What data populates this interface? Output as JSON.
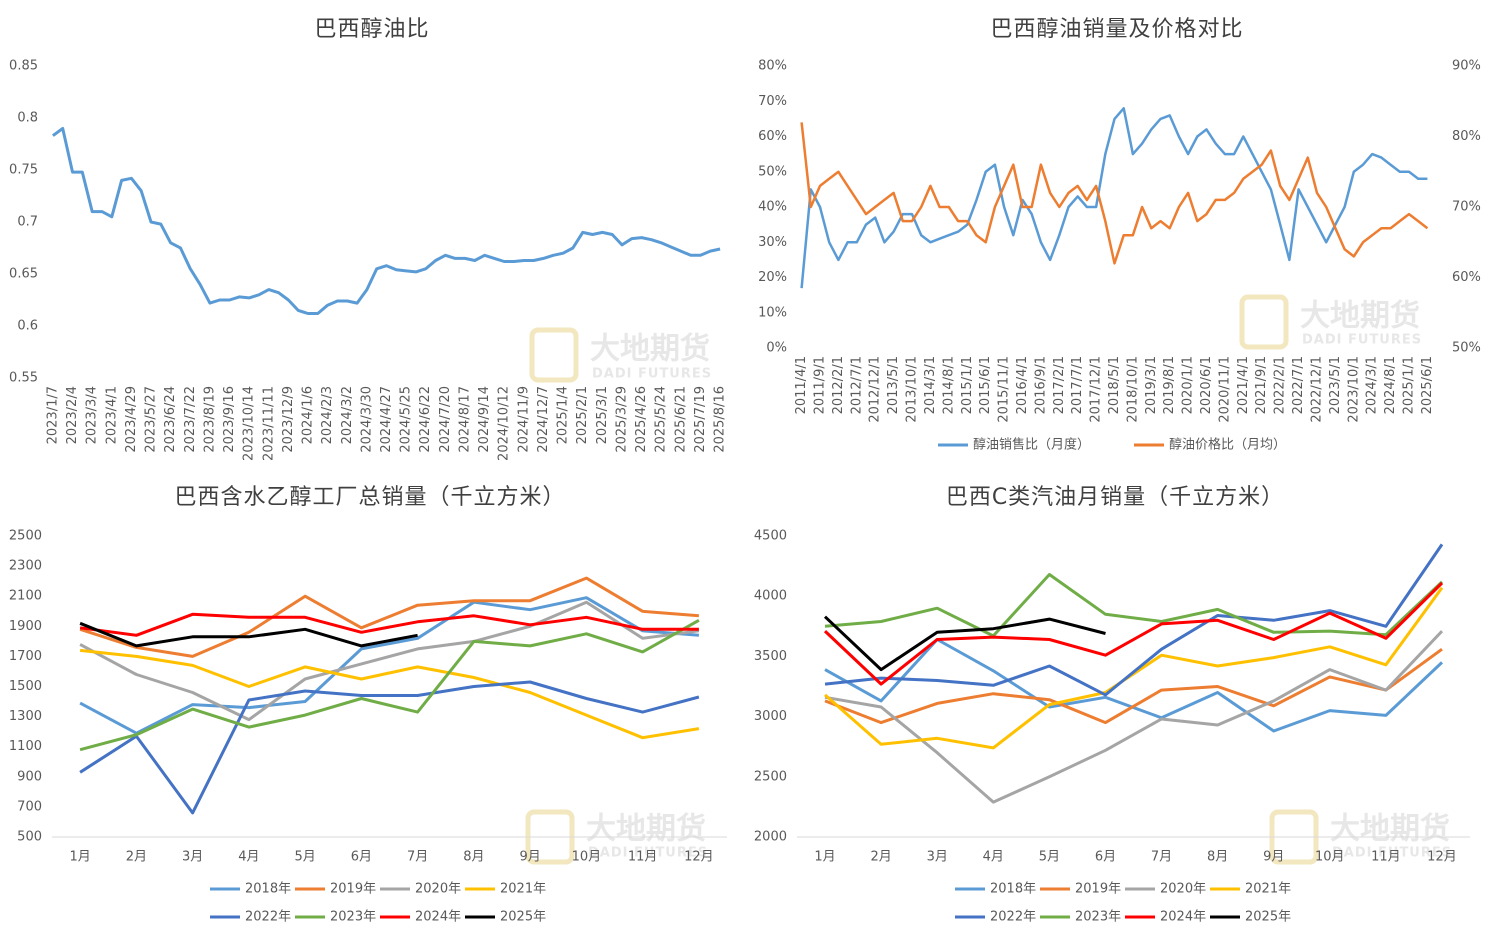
{
  "watermark": {
    "name": "大地期货",
    "sub": "DADI FUTURES"
  },
  "chart_data": [
    {
      "type": "line",
      "title": "巴西醇油比",
      "color": "#5b9bd5",
      "categories": [
        "2023/1/7",
        null,
        "2023/2/4",
        null,
        "2023/3/4",
        null,
        "2023/4/1",
        null,
        "2023/4/29",
        null,
        "2023/5/27",
        null,
        "2023/6/24",
        null,
        "2023/7/22",
        null,
        "2023/8/19",
        null,
        "2023/9/16",
        null,
        "2023/10/14",
        null,
        "2023/11/11",
        null,
        "2023/12/9",
        null,
        "2024/1/6",
        null,
        "2024/2/3",
        null,
        "2024/3/2",
        null,
        "2024/3/30",
        null,
        "2024/4/27",
        null,
        "2024/5/25",
        null,
        "2024/6/22",
        null,
        "2024/7/20",
        null,
        "2024/8/17",
        null,
        "2024/9/14",
        null,
        "2024/10/12",
        null,
        "2024/11/9",
        null,
        "2024/12/7",
        null,
        "2025/1/4",
        null,
        "2025/2/1",
        null,
        "2025/3/1",
        null,
        "2025/3/29",
        null,
        "2025/4/26",
        null,
        "2025/5/24",
        null,
        "2025/6/21",
        null,
        "2025/7/19",
        null,
        "2025/8/16"
      ],
      "values": [
        0.783,
        0.79,
        0.748,
        0.748,
        0.71,
        0.71,
        0.705,
        0.74,
        0.742,
        0.73,
        0.7,
        0.698,
        0.68,
        0.675,
        0.655,
        0.64,
        0.622,
        0.625,
        0.625,
        0.628,
        0.627,
        0.63,
        0.635,
        0.632,
        0.625,
        0.615,
        0.612,
        0.612,
        0.62,
        0.624,
        0.624,
        0.622,
        0.635,
        0.655,
        0.658,
        0.654,
        0.653,
        0.652,
        0.655,
        0.663,
        0.668,
        0.665,
        0.665,
        0.663,
        0.668,
        0.665,
        0.662,
        0.662,
        0.663,
        0.663,
        0.665,
        0.668,
        0.67,
        0.675,
        0.69,
        0.688,
        0.69,
        0.688,
        0.678,
        0.684,
        0.685,
        0.683,
        0.68,
        0.676,
        0.672,
        0.668,
        0.668,
        0.672,
        0.674
      ],
      "ylim": [
        0.55,
        0.85
      ],
      "yticks": [
        0.55,
        0.6,
        0.65,
        0.7,
        0.75,
        0.8,
        0.85
      ],
      "grid": false
    },
    {
      "type": "line",
      "title": "巴西醇油销量及价格对比",
      "categories": [
        "2011/4/1",
        null,
        "2011/9/1",
        null,
        "2012/2/1",
        null,
        "2012/7/1",
        null,
        "2012/12/1",
        null,
        "2013/5/1",
        null,
        "2013/10/1",
        null,
        "2014/3/1",
        null,
        "2014/8/1",
        null,
        "2015/1/1",
        null,
        "2015/6/1",
        null,
        "2015/11/1",
        null,
        "2016/4/1",
        null,
        "2016/9/1",
        null,
        "2017/2/1",
        null,
        "2017/7/1",
        null,
        "2017/12/1",
        null,
        "2018/5/1",
        null,
        "2018/10/1",
        null,
        "2019/3/1",
        null,
        "2019/8/1",
        null,
        "2020/1/1",
        null,
        "2020/6/1",
        null,
        "2020/11/1",
        null,
        "2021/4/1",
        null,
        "2021/9/1",
        null,
        "2022/2/1",
        null,
        "2022/7/1",
        null,
        "2022/12/1",
        null,
        "2023/5/1",
        null,
        "2023/10/1",
        null,
        "2024/3/1",
        null,
        "2024/8/1",
        null,
        "2025/1/1",
        null,
        "2025/6/1"
      ],
      "series": [
        {
          "name": "醇油销售比（月度）",
          "color": "#5b9bd5",
          "values": [
            17,
            45,
            40,
            30,
            25,
            30,
            30,
            35,
            37,
            30,
            33,
            38,
            38,
            32,
            30,
            31,
            32,
            33,
            35,
            42,
            50,
            52,
            40,
            32,
            42,
            38,
            30,
            25,
            32,
            40,
            43,
            40,
            40,
            55,
            65,
            68,
            55,
            58,
            62,
            65,
            66,
            60,
            55,
            60,
            62,
            58,
            55,
            55,
            60,
            55,
            50,
            45,
            35,
            25,
            45,
            40,
            35,
            30,
            35,
            40,
            50,
            52,
            55,
            54,
            52,
            50,
            50,
            48,
            48
          ]
        },
        {
          "name": "醇油价格比（月均）",
          "color": "#ed7d31",
          "axis": "y2",
          "values": [
            82,
            70,
            73,
            74,
            75,
            73,
            71,
            69,
            70,
            71,
            72,
            68,
            68,
            70,
            73,
            70,
            70,
            68,
            68,
            66,
            65,
            70,
            73,
            76,
            70,
            70,
            76,
            72,
            70,
            72,
            73,
            71,
            73,
            68,
            62,
            66,
            66,
            70,
            67,
            68,
            67,
            70,
            72,
            68,
            69,
            71,
            71,
            72,
            74,
            75,
            76,
            78,
            73,
            71,
            74,
            77,
            72,
            70,
            67,
            64,
            63,
            65,
            66,
            67,
            67,
            68,
            69,
            68,
            67
          ]
        }
      ],
      "ylim": [
        0,
        80
      ],
      "yticks": [
        {
          "value": 0,
          "label": "0%"
        },
        {
          "value": 10,
          "label": "10%"
        },
        {
          "value": 20,
          "label": "20%"
        },
        {
          "value": 30,
          "label": "30%"
        },
        {
          "value": 40,
          "label": "40%"
        },
        {
          "value": 50,
          "label": "50%"
        },
        {
          "value": 60,
          "label": "60%"
        },
        {
          "value": 70,
          "label": "70%"
        },
        {
          "value": 80,
          "label": "80%"
        }
      ],
      "y2lim": [
        50,
        90
      ],
      "y2ticks": [
        {
          "value": 50,
          "label": "50%"
        },
        {
          "value": 60,
          "label": "60%"
        },
        {
          "value": 70,
          "label": "70%"
        },
        {
          "value": 80,
          "label": "80%"
        },
        {
          "value": 90,
          "label": "90%"
        }
      ],
      "legend": "bottom",
      "grid": false
    },
    {
      "type": "line",
      "title": "巴西含水乙醇工厂总销量（千立方米）",
      "categories": [
        "1月",
        "2月",
        "3月",
        "4月",
        "5月",
        "6月",
        "7月",
        "8月",
        "9月",
        "10月",
        "11月",
        "12月"
      ],
      "series": [
        {
          "name": "2018年",
          "color": "#5b9bd5",
          "values": [
            1390,
            1190,
            1380,
            1360,
            1400,
            1750,
            1820,
            2060,
            2010,
            2090,
            1870,
            1840
          ]
        },
        {
          "name": "2019年",
          "color": "#ed7d31",
          "values": [
            1880,
            1760,
            1700,
            1860,
            2100,
            1890,
            2040,
            2070,
            2070,
            2220,
            2000,
            1970
          ]
        },
        {
          "name": "2020年",
          "color": "#a5a5a5",
          "values": [
            1780,
            1580,
            1460,
            1280,
            1550,
            1650,
            1750,
            1800,
            1900,
            2060,
            1820,
            1870
          ]
        },
        {
          "name": "2021年",
          "color": "#ffc000",
          "values": [
            1740,
            1700,
            1640,
            1500,
            1630,
            1550,
            1630,
            1560,
            1460,
            1310,
            1160,
            1220
          ]
        },
        {
          "name": "2022年",
          "color": "#4472c4",
          "values": [
            930,
            1170,
            660,
            1410,
            1470,
            1440,
            1440,
            1500,
            1530,
            1420,
            1330,
            1430
          ]
        },
        {
          "name": "2023年",
          "color": "#70ad47",
          "values": [
            1080,
            1180,
            1350,
            1230,
            1310,
            1420,
            1330,
            1800,
            1770,
            1850,
            1730,
            1940
          ]
        },
        {
          "name": "2024年",
          "color": "#ff0000",
          "values": [
            1890,
            1840,
            1980,
            1960,
            1960,
            1860,
            1930,
            1970,
            1910,
            1960,
            1880,
            1880
          ]
        },
        {
          "name": "2025年",
          "color": "#000000",
          "values": [
            1920,
            1770,
            1830,
            1830,
            1880,
            1770,
            1840,
            null,
            null,
            null,
            null,
            null
          ]
        }
      ],
      "ylim": [
        500,
        2500
      ],
      "yticks": [
        500,
        700,
        900,
        1100,
        1300,
        1500,
        1700,
        1900,
        2100,
        2300,
        2500
      ],
      "legend": "bottom",
      "grid": false
    },
    {
      "type": "line",
      "title": "巴西C类汽油月销量（千立方米）",
      "categories": [
        "1月",
        "2月",
        "3月",
        "4月",
        "5月",
        "6月",
        "7月",
        "8月",
        "9月",
        "10月",
        "11月",
        "12月"
      ],
      "series": [
        {
          "name": "2018年",
          "color": "#5b9bd5",
          "values": [
            3390,
            3130,
            3640,
            3380,
            3080,
            3160,
            2990,
            3200,
            2880,
            3050,
            3010,
            3450
          ]
        },
        {
          "name": "2019年",
          "color": "#ed7d31",
          "values": [
            3130,
            2950,
            3110,
            3190,
            3140,
            2950,
            3220,
            3250,
            3090,
            3330,
            3220,
            3560
          ]
        },
        {
          "name": "2020年",
          "color": "#a5a5a5",
          "values": [
            3160,
            3080,
            2700,
            2290,
            2500,
            2720,
            2980,
            2930,
            3130,
            3390,
            3220,
            3710
          ]
        },
        {
          "name": "2021年",
          "color": "#ffc000",
          "values": [
            3180,
            2770,
            2820,
            2740,
            3100,
            3200,
            3510,
            3420,
            3490,
            3580,
            3430,
            4070
          ]
        },
        {
          "name": "2022年",
          "color": "#4472c4",
          "values": [
            3270,
            3320,
            3300,
            3260,
            3420,
            3180,
            3560,
            3840,
            3800,
            3880,
            3750,
            4430
          ]
        },
        {
          "name": "2023年",
          "color": "#70ad47",
          "values": [
            3750,
            3790,
            3900,
            3670,
            4180,
            3850,
            3790,
            3890,
            3700,
            3710,
            3680,
            4120
          ]
        },
        {
          "name": "2024年",
          "color": "#ff0000",
          "values": [
            3710,
            3270,
            3640,
            3660,
            3640,
            3510,
            3770,
            3800,
            3640,
            3860,
            3650,
            4110
          ]
        },
        {
          "name": "2025年",
          "color": "#000000",
          "values": [
            3830,
            3390,
            3700,
            3730,
            3810,
            3690,
            null,
            null,
            null,
            null,
            null,
            null
          ]
        }
      ],
      "ylim": [
        2000,
        4500
      ],
      "yticks": [
        2000,
        2500,
        3000,
        3500,
        4000,
        4500
      ],
      "legend": "bottom",
      "grid": false
    }
  ]
}
